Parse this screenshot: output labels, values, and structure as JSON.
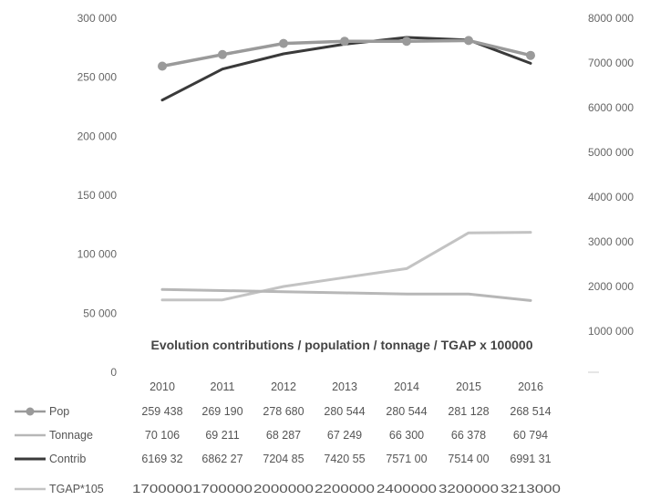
{
  "chart_data": {
    "type": "line",
    "title": "Evolution contributions / population / tonnage / TGAP x 100000",
    "categories": [
      "2010",
      "2011",
      "2012",
      "2013",
      "2014",
      "2015",
      "2016"
    ],
    "y_left": {
      "ticks": [
        "0",
        "50 000",
        "100 000",
        "150 000",
        "200 000",
        "250 000",
        "300 000"
      ],
      "range": [
        0,
        300000
      ]
    },
    "y_right": {
      "ticks": [
        "1000 000",
        "2000 000",
        "3000 000",
        "4000 000",
        "5000 000",
        "6000 000",
        "7000 000",
        "8000 000"
      ],
      "range": [
        1000000,
        8000000
      ]
    },
    "series": [
      {
        "name": "Pop",
        "axis": "left",
        "color": "#9a9a9a",
        "marker": true,
        "values": [
          259438,
          269190,
          278680,
          280544,
          280544,
          281128,
          268514
        ],
        "labels": [
          "259 438",
          "269 190",
          "278 680",
          "280 544",
          "280 544",
          "281 128",
          "268 514"
        ]
      },
      {
        "name": "Tonnage",
        "axis": "left",
        "color": "#b7b7b7",
        "marker": false,
        "values": [
          70106,
          69211,
          68287,
          67249,
          66300,
          66378,
          60794
        ],
        "labels": [
          "70 106",
          "69 211",
          "68 287",
          "67 249",
          "66 300",
          "66 378",
          "60 794"
        ]
      },
      {
        "name": "Contrib",
        "axis": "right",
        "color": "#3a3a3a",
        "marker": false,
        "values": [
          6169320,
          6862270,
          7204850,
          7420550,
          7571000,
          7514000,
          6991310
        ],
        "labels": [
          "6169 32",
          "6862 27",
          "7204 85",
          "7420 55",
          "7571 00",
          "7514 00",
          "6991 31"
        ]
      },
      {
        "name": "TGAP*105",
        "axis": "right",
        "color": "#c3c3c3",
        "marker": false,
        "values": [
          1700000,
          1700000,
          2000000,
          2200000,
          2400000,
          3200000,
          3213000
        ],
        "labels": [
          "1700000",
          "1700000",
          "2000000",
          "2200000",
          "2400000",
          "3200000",
          "3213000"
        ]
      }
    ],
    "grid": false
  }
}
